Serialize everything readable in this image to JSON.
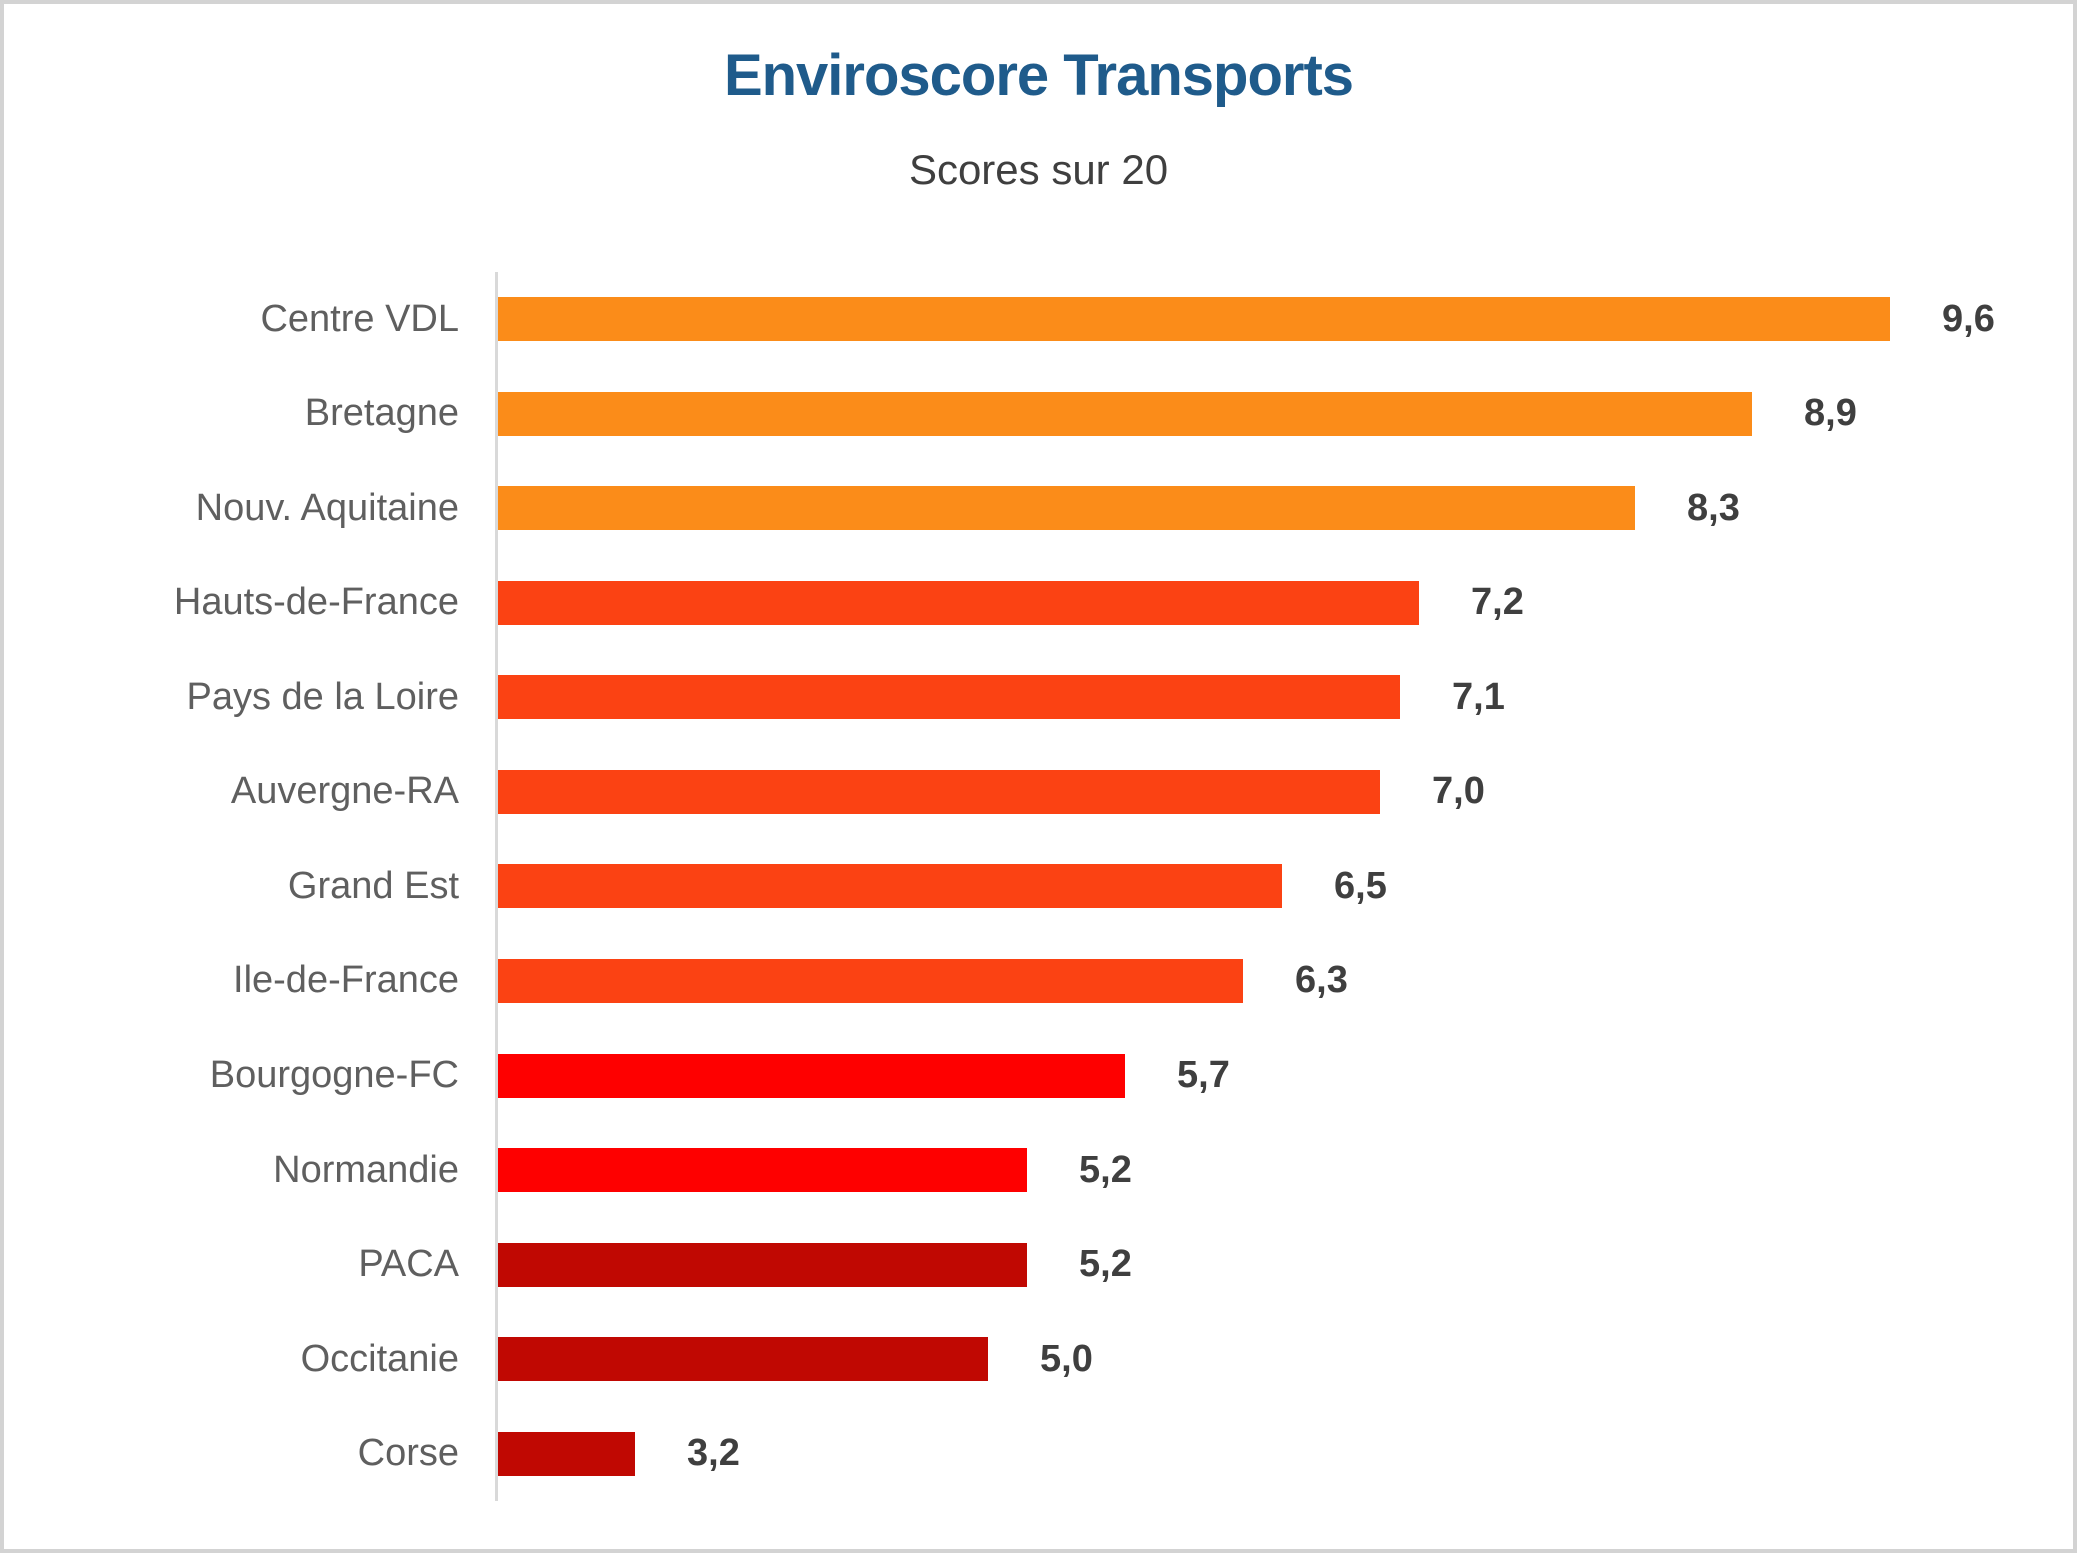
{
  "frame": {
    "background_color": "#ffffff",
    "border_color": "#d3d3d3"
  },
  "chart_data": {
    "type": "bar",
    "orientation": "horizontal",
    "title": "Enviroscore Transports",
    "subtitle": "Scores sur 20",
    "categories": [
      "Centre VDL",
      "Bretagne",
      "Nouv. Aquitaine",
      "Hauts-de-France",
      "Pays de la Loire",
      "Auvergne-RA",
      "Grand Est",
      "Ile-de-France",
      "Bourgogne-FC",
      "Normandie",
      "PACA",
      "Occitanie",
      "Corse"
    ],
    "values": [
      9.6,
      8.9,
      8.3,
      7.2,
      7.1,
      7.0,
      6.5,
      6.3,
      5.7,
      5.2,
      5.2,
      5.0,
      3.2
    ],
    "value_labels": [
      "9,6",
      "8,9",
      "8,3",
      "7,2",
      "7,1",
      "7,0",
      "6,5",
      "6,3",
      "5,7",
      "5,2",
      "5,2",
      "5,0",
      "3,2"
    ],
    "bar_colors": [
      "#FB8C19",
      "#FB8C19",
      "#FB8C19",
      "#FB4213",
      "#FB4213",
      "#FB4213",
      "#FB4213",
      "#FB4213",
      "#FE0000",
      "#FE0000",
      "#C00802",
      "#C00802",
      "#C00802"
    ],
    "xlim": [
      2.5,
      10
    ],
    "grid": false,
    "legend": false,
    "axis_line_color": "#d9d9d9",
    "title_color": "#1f5b8b",
    "subtitle_color": "#3f3f3f",
    "category_label_color": "#5f5f5f",
    "value_label_color": "#3f3f3f"
  }
}
